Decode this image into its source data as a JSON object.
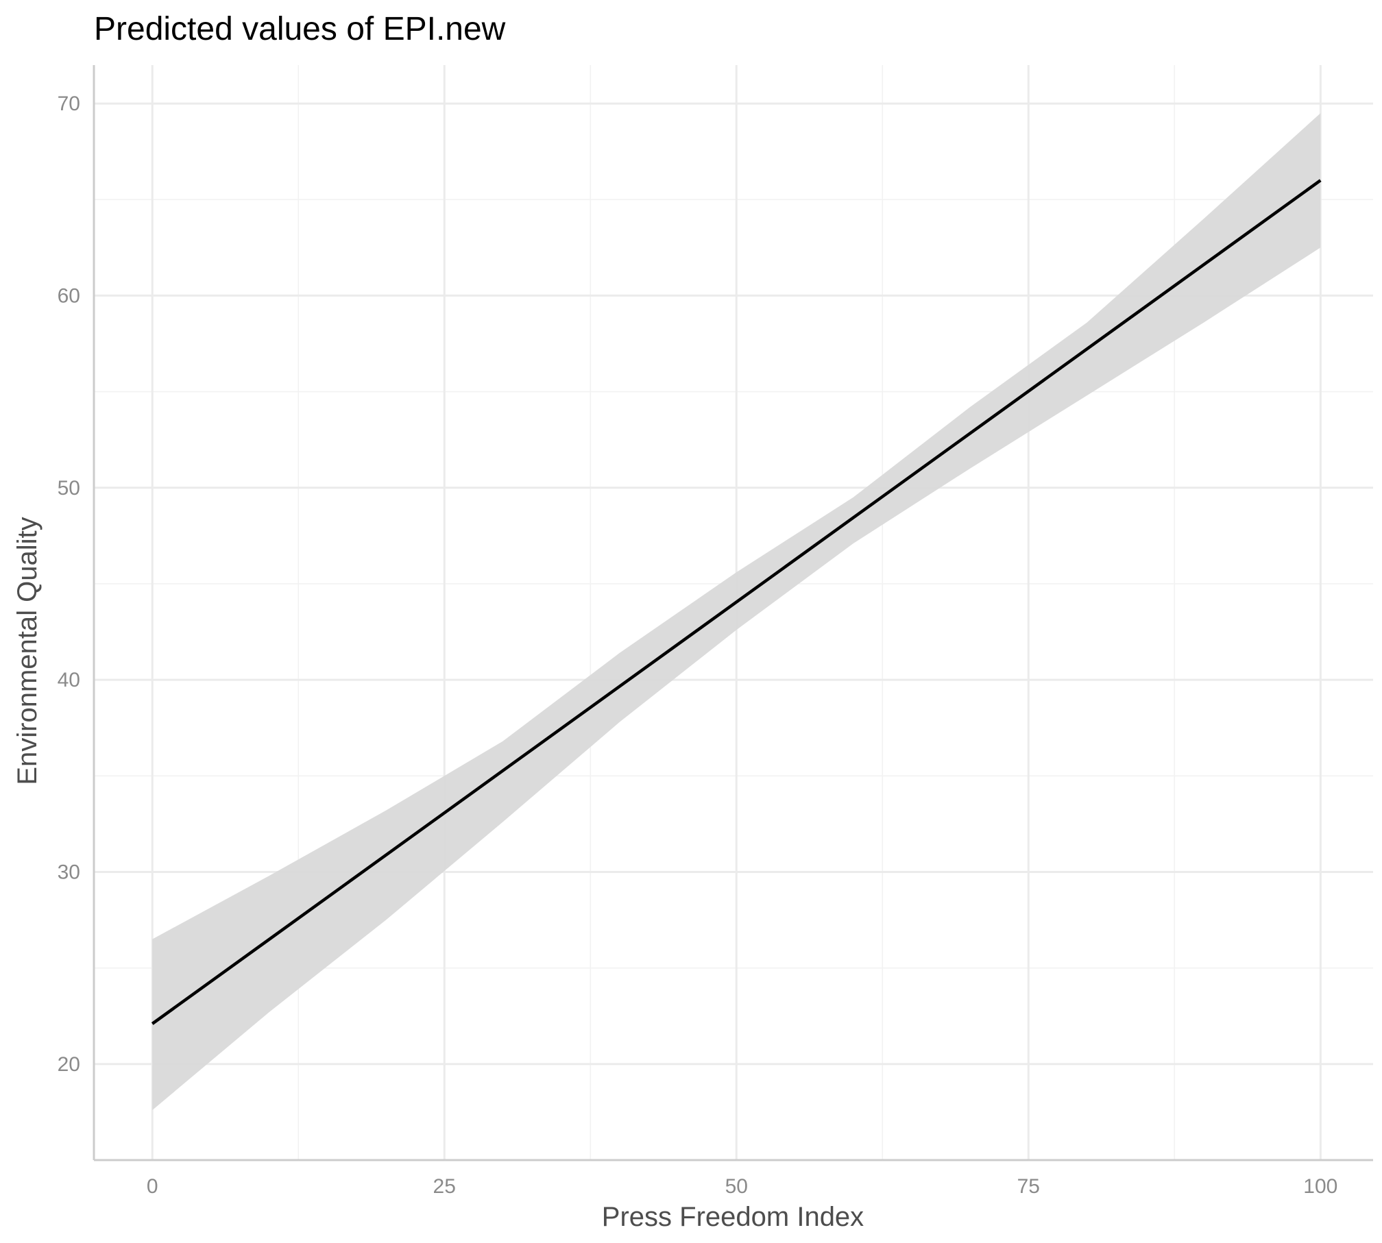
{
  "chart_data": {
    "type": "line",
    "title": "Predicted values of EPI.new",
    "xlabel": "Press Freedom Index",
    "ylabel": "Environmental Quality",
    "xlim": [
      -5,
      104.5
    ],
    "ylim": [
      15,
      72
    ],
    "x_ticks": [
      0,
      25,
      50,
      75,
      100
    ],
    "x_tick_labels": [
      "0",
      "25",
      "50",
      "75",
      "100"
    ],
    "y_ticks": [
      20,
      30,
      40,
      50,
      60,
      70
    ],
    "y_tick_labels": [
      "20",
      "30",
      "40",
      "50",
      "60",
      "70"
    ],
    "grid": true,
    "legend": "none",
    "series": [
      {
        "x": [
          0,
          100
        ],
        "y": [
          22.1,
          66.0
        ],
        "ci_x": [
          0,
          10,
          20,
          30,
          40,
          50,
          60,
          70,
          80,
          90,
          100
        ],
        "ci_lower": [
          17.6,
          22.7,
          27.5,
          32.6,
          37.8,
          42.6,
          47.1,
          51.0,
          54.8,
          58.6,
          62.5
        ],
        "ci_upper": [
          26.5,
          29.8,
          33.2,
          36.8,
          41.4,
          45.6,
          49.5,
          54.2,
          58.6,
          64.0,
          69.5
        ],
        "color": "#000000",
        "ribbon_color": "#d9d9d9"
      }
    ]
  }
}
